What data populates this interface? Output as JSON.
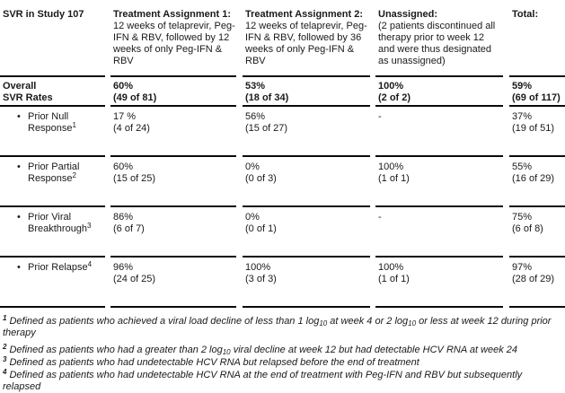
{
  "table": {
    "corner_header": "SVR in Study 107",
    "columns": [
      {
        "title": "Treatment Assignment 1:",
        "desc": "12 weeks of telaprevir, Peg-IFN & RBV, followed by 12 weeks of only Peg-IFN & RBV"
      },
      {
        "title": "Treatment Assignment 2:",
        "desc": "12 weeks of telaprevir, Peg-IFN & RBV, followed by 36 weeks of only Peg-IFN & RBV"
      },
      {
        "title": "Unassigned:",
        "desc": "(2 patients discontinued all therapy prior to week 12 and were thus designated as unassigned)"
      },
      {
        "title": "Total:",
        "desc": ""
      }
    ],
    "rows": [
      {
        "label_lines": [
          "Overall",
          "SVR Rates"
        ],
        "sup": "",
        "bullet": false,
        "bold": true,
        "values": [
          {
            "pct": "60%",
            "frac": "(49 of 81)"
          },
          {
            "pct": "53%",
            "frac": "(18 of 34)"
          },
          {
            "pct": "100%",
            "frac": "(2 of 2)"
          },
          {
            "pct": "59%",
            "frac": "(69 of 117)"
          }
        ]
      },
      {
        "label_lines": [
          "Prior Null",
          "Response"
        ],
        "sup": "1",
        "bullet": true,
        "bold": false,
        "values": [
          {
            "pct": "17 %",
            "frac": "(4 of 24)"
          },
          {
            "pct": "56%",
            "frac": "(15 of 27)"
          },
          {
            "pct": "-",
            "frac": ""
          },
          {
            "pct": "37%",
            "frac": "(19 of 51)"
          }
        ]
      },
      {
        "label_lines": [
          "Prior Partial",
          "Response"
        ],
        "sup": "2",
        "bullet": true,
        "bold": false,
        "values": [
          {
            "pct": "60%",
            "frac": "(15 of 25)"
          },
          {
            "pct": "0%",
            "frac": "(0 of 3)"
          },
          {
            "pct": "100%",
            "frac": "(1 of 1)"
          },
          {
            "pct": "55%",
            "frac": "(16 of 29)"
          }
        ]
      },
      {
        "label_lines": [
          "Prior Viral",
          "Breakthrough"
        ],
        "sup": "3",
        "bullet": true,
        "bold": false,
        "values": [
          {
            "pct": "86%",
            "frac": "(6 of 7)"
          },
          {
            "pct": "0%",
            "frac": "(0 of 1)"
          },
          {
            "pct": "-",
            "frac": ""
          },
          {
            "pct": "75%",
            "frac": "(6 of 8)"
          }
        ]
      },
      {
        "label_lines": [
          "Prior Relapse"
        ],
        "sup": "4",
        "bullet": true,
        "bold": false,
        "values": [
          {
            "pct": "96%",
            "frac": "(24 of 25)"
          },
          {
            "pct": "100%",
            "frac": "(3 of 3)"
          },
          {
            "pct": "100%",
            "frac": "(1 of 1)"
          },
          {
            "pct": "97%",
            "frac": "(28 of 29)"
          }
        ]
      }
    ],
    "footnotes": [
      {
        "marker": "1",
        "segments": [
          {
            "text": "Defined as patients who achieved a viral load decline of less than 1 log"
          },
          {
            "sub": "10"
          },
          {
            "text": " at week 4 or 2 log"
          },
          {
            "sub": "10"
          },
          {
            "text": " or less at week 12 during prior therapy"
          }
        ]
      },
      {
        "marker": "2",
        "segments": [
          {
            "text": "Defined as patients who had a greater than 2 log"
          },
          {
            "sub": "10"
          },
          {
            "text": " viral decline at week 12 but had detectable HCV RNA at week 24"
          }
        ]
      },
      {
        "marker": "3",
        "segments": [
          {
            "text": "Defined as patients who had undetectable HCV RNA but relapsed before the end of treatment"
          }
        ]
      },
      {
        "marker": "4",
        "segments": [
          {
            "text": "Defined as patients who had undetectable HCV RNA at the end of treatment with Peg-IFN and RBV but subsequently relapsed"
          }
        ]
      }
    ],
    "bullet_glyph": "•"
  },
  "colors": {
    "text": "#1a1a1a",
    "rule": "#0a0a0a",
    "background": "#ffffff"
  }
}
